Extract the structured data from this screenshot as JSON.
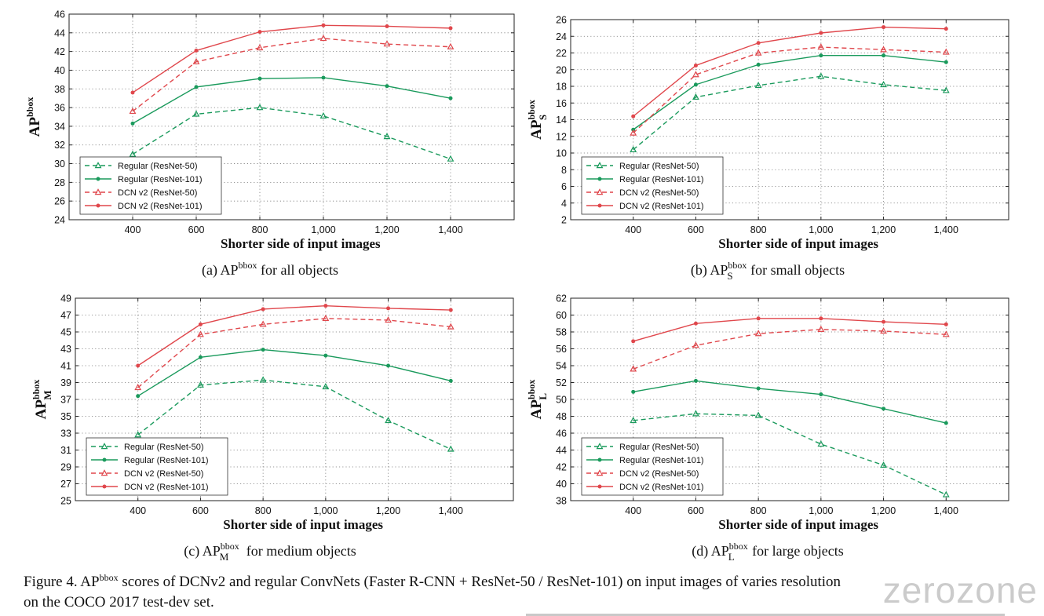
{
  "chart_data": [
    {
      "type": "line",
      "panel": "(a)",
      "caption_main": "AP",
      "caption_sup": "bbox",
      "caption_sub": "",
      "caption_rest": "for all objects",
      "ylabel_main": "AP",
      "ylabel_sup": "bbox",
      "ylabel_sub": "",
      "xlabel": "Shorter side of input images",
      "x": [
        400,
        600,
        800,
        1000,
        1200,
        1400
      ],
      "x_tick_labels": [
        "400",
        "600",
        "800",
        "1,000",
        "1,200",
        "1,400"
      ],
      "xlim": [
        200,
        1600
      ],
      "ylim": [
        24,
        46
      ],
      "y_ticks": [
        24,
        26,
        28,
        30,
        32,
        34,
        36,
        38,
        40,
        42,
        44,
        46
      ],
      "grid": true,
      "legend_position": "bottom-left",
      "series": [
        {
          "name": "Regular (ResNet-50)",
          "values": [
            31.0,
            35.3,
            36.0,
            35.1,
            32.9,
            30.5
          ]
        },
        {
          "name": "Regular (ResNet-101)",
          "values": [
            34.3,
            38.2,
            39.1,
            39.2,
            38.3,
            37.0
          ]
        },
        {
          "name": "DCN v2 (ResNet-50)",
          "values": [
            35.6,
            40.9,
            42.4,
            43.4,
            42.8,
            42.5
          ]
        },
        {
          "name": "DCN v2 (ResNet-101)",
          "values": [
            37.6,
            42.1,
            44.1,
            44.8,
            44.7,
            44.5
          ]
        }
      ]
    },
    {
      "type": "line",
      "panel": "(b)",
      "caption_main": "AP",
      "caption_sup": "bbox",
      "caption_sub": "S",
      "caption_rest": "for small objects",
      "ylabel_main": "AP",
      "ylabel_sup": "bbox",
      "ylabel_sub": "S",
      "xlabel": "Shorter side of input images",
      "x": [
        400,
        600,
        800,
        1000,
        1200,
        1400
      ],
      "x_tick_labels": [
        "400",
        "600",
        "800",
        "1,000",
        "1,200",
        "1,400"
      ],
      "xlim": [
        200,
        1600
      ],
      "ylim": [
        2,
        26
      ],
      "y_ticks": [
        2,
        4,
        6,
        8,
        10,
        12,
        14,
        16,
        18,
        20,
        22,
        24,
        26
      ],
      "grid": true,
      "legend_position": "bottom-left",
      "series": [
        {
          "name": "Regular (ResNet-50)",
          "values": [
            10.4,
            16.7,
            18.1,
            19.2,
            18.2,
            17.5
          ]
        },
        {
          "name": "Regular (ResNet-101)",
          "values": [
            12.8,
            18.2,
            20.6,
            21.7,
            21.7,
            20.9
          ]
        },
        {
          "name": "DCN v2 (ResNet-50)",
          "values": [
            12.4,
            19.4,
            22.0,
            22.7,
            22.4,
            22.1
          ]
        },
        {
          "name": "DCN v2 (ResNet-101)",
          "values": [
            14.4,
            20.5,
            23.2,
            24.4,
            25.1,
            24.9
          ]
        }
      ]
    },
    {
      "type": "line",
      "panel": "(c)",
      "caption_main": "AP",
      "caption_sup": "bbox",
      "caption_sub": "M",
      "caption_rest": "for medium objects",
      "ylabel_main": "AP",
      "ylabel_sup": "bbox",
      "ylabel_sub": "M",
      "xlabel": "Shorter side of input images",
      "x": [
        400,
        600,
        800,
        1000,
        1200,
        1400
      ],
      "x_tick_labels": [
        "400",
        "600",
        "800",
        "1,000",
        "1,200",
        "1,400"
      ],
      "xlim": [
        200,
        1600
      ],
      "ylim": [
        25,
        49
      ],
      "y_ticks": [
        25,
        27,
        29,
        31,
        33,
        35,
        37,
        39,
        41,
        43,
        45,
        47,
        49
      ],
      "grid": true,
      "legend_position": "bottom-left",
      "series": [
        {
          "name": "Regular (ResNet-50)",
          "values": [
            32.8,
            38.7,
            39.3,
            38.5,
            34.5,
            31.1
          ]
        },
        {
          "name": "Regular (ResNet-101)",
          "values": [
            37.4,
            42.0,
            42.9,
            42.2,
            41.0,
            39.2
          ]
        },
        {
          "name": "DCN v2 (ResNet-50)",
          "values": [
            38.4,
            44.7,
            45.9,
            46.6,
            46.4,
            45.6
          ]
        },
        {
          "name": "DCN v2 (ResNet-101)",
          "values": [
            41.0,
            45.9,
            47.7,
            48.1,
            47.8,
            47.6
          ]
        }
      ]
    },
    {
      "type": "line",
      "panel": "(d)",
      "caption_main": "AP",
      "caption_sup": "bbox",
      "caption_sub": "L",
      "caption_rest": "for large objects",
      "ylabel_main": "AP",
      "ylabel_sup": "bbox",
      "ylabel_sub": "L",
      "xlabel": "Shorter side of input images",
      "x": [
        400,
        600,
        800,
        1000,
        1200,
        1400
      ],
      "x_tick_labels": [
        "400",
        "600",
        "800",
        "1,000",
        "1,200",
        "1,400"
      ],
      "xlim": [
        200,
        1600
      ],
      "ylim": [
        38,
        62
      ],
      "y_ticks": [
        38,
        40,
        42,
        44,
        46,
        48,
        50,
        52,
        54,
        56,
        58,
        60,
        62
      ],
      "grid": true,
      "legend_position": "bottom-left",
      "series": [
        {
          "name": "Regular (ResNet-50)",
          "values": [
            47.5,
            48.3,
            48.1,
            44.7,
            42.2,
            38.7
          ]
        },
        {
          "name": "Regular (ResNet-101)",
          "values": [
            50.9,
            52.2,
            51.3,
            50.6,
            48.9,
            47.2
          ]
        },
        {
          "name": "DCN v2 (ResNet-50)",
          "values": [
            53.6,
            56.4,
            57.8,
            58.3,
            58.1,
            57.7
          ]
        },
        {
          "name": "DCN v2 (ResNet-101)",
          "values": [
            56.9,
            59.0,
            59.6,
            59.6,
            59.2,
            58.9
          ]
        }
      ]
    }
  ],
  "series_styles": [
    {
      "color": "#1a9a5c",
      "dashed": true,
      "marker": "triangle"
    },
    {
      "color": "#1a9a5c",
      "dashed": false,
      "marker": "dot"
    },
    {
      "color": "#e0474c",
      "dashed": true,
      "marker": "triangle"
    },
    {
      "color": "#e0474c",
      "dashed": false,
      "marker": "dot"
    }
  ],
  "caption": {
    "prefix": "Figure 4. AP",
    "sup": "bbox",
    "text_line1": " scores of DCNv2 and regular ConvNets (Faster R-CNN + ResNet-50 / ResNet-101) on input images of varies resolution",
    "text_line2": "on the COCO 2017 test-dev set."
  },
  "watermark": "zerozone"
}
